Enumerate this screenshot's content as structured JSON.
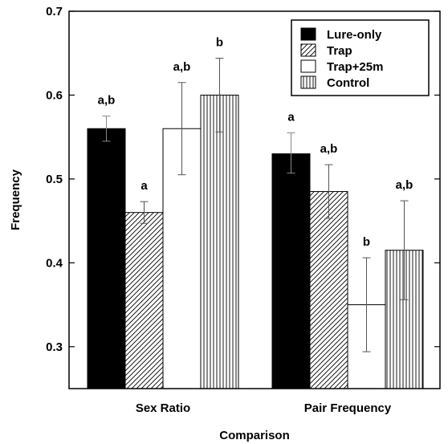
{
  "chart_data": {
    "type": "bar",
    "title": "",
    "xlabel": "Comparison",
    "ylabel": "Frequency",
    "ylim": [
      0.25,
      0.7
    ],
    "yticks": [
      "0.3",
      "0.4",
      "0.5",
      "0.6",
      "0.7"
    ],
    "ytick_values": [
      0.3,
      0.4,
      0.5,
      0.6,
      0.7
    ],
    "categories": [
      "Sex Ratio",
      "Pair Frequency"
    ],
    "legend_position": "top-right",
    "series": [
      {
        "name": "Lure-only",
        "pattern": "solid",
        "values": [
          0.56,
          0.53
        ],
        "errors": [
          [
            0.545,
            0.575
          ],
          [
            0.507,
            0.555
          ]
        ],
        "sig": [
          "a,b",
          "a"
        ]
      },
      {
        "name": "Trap",
        "pattern": "diagonal",
        "values": [
          0.46,
          0.485
        ],
        "errors": [
          [
            0.447,
            0.473
          ],
          [
            0.453,
            0.517
          ]
        ],
        "sig": [
          "a",
          "a,b"
        ]
      },
      {
        "name": "Trap+25m",
        "pattern": "open",
        "values": [
          0.56,
          0.35
        ],
        "errors": [
          [
            0.505,
            0.615
          ],
          [
            0.294,
            0.406
          ]
        ],
        "sig": [
          "a,b",
          "b"
        ]
      },
      {
        "name": "Control",
        "pattern": "vertical",
        "values": [
          0.6,
          0.415
        ],
        "errors": [
          [
            0.556,
            0.644
          ],
          [
            0.356,
            0.474
          ]
        ],
        "sig": [
          "b",
          "a,b"
        ]
      }
    ]
  }
}
